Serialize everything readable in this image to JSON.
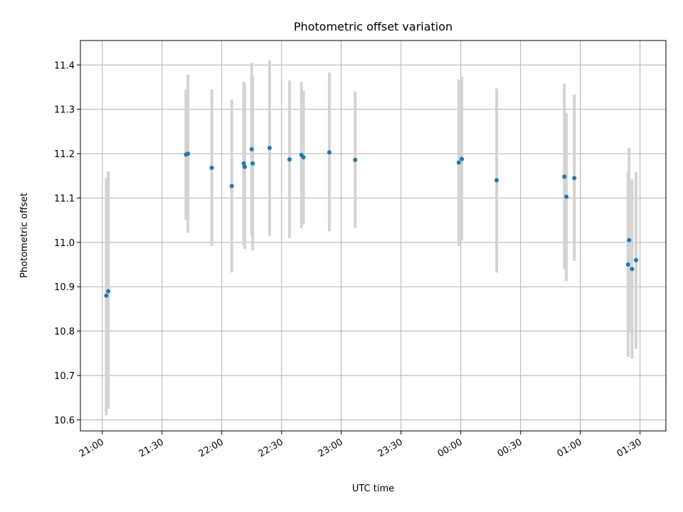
{
  "chart_data": {
    "type": "scatter",
    "title": "Photometric offset variation",
    "xlabel": "UTC time",
    "ylabel": "Photometric offset",
    "x_ticks": [
      "21:00",
      "21:30",
      "22:00",
      "22:30",
      "23:00",
      "23:30",
      "00:00",
      "00:30",
      "01:00",
      "01:30"
    ],
    "y_ticks": [
      "10.6",
      "10.7",
      "10.8",
      "10.9",
      "11.0",
      "11.1",
      "11.2",
      "11.3",
      "11.4"
    ],
    "ylim": [
      10.575,
      11.455
    ],
    "xlim": [
      "20:49",
      "01:43"
    ],
    "grid": true,
    "colors": {
      "point": "#1f77b4",
      "errorbar": "#d3d3d3",
      "grid": "#b0b0b0"
    },
    "points": [
      {
        "x": "21:02",
        "y": 10.88,
        "ylow": 10.61,
        "yhigh": 11.145
      },
      {
        "x": "21:03",
        "y": 10.89,
        "ylow": 10.625,
        "yhigh": 11.16
      },
      {
        "x": "21:42",
        "y": 11.198,
        "ylow": 11.05,
        "yhigh": 11.345
      },
      {
        "x": "21:43",
        "y": 11.2,
        "ylow": 11.022,
        "yhigh": 11.378
      },
      {
        "x": "21:55",
        "y": 11.168,
        "ylow": 10.992,
        "yhigh": 11.345
      },
      {
        "x": "22:05",
        "y": 11.127,
        "ylow": 10.932,
        "yhigh": 11.322
      },
      {
        "x": "22:11",
        "y": 11.178,
        "ylow": 10.992,
        "yhigh": 11.362
      },
      {
        "x": "22:11.5",
        "y": 11.17,
        "ylow": 10.985,
        "yhigh": 11.357
      },
      {
        "x": "22:15",
        "y": 11.21,
        "ylow": 11.015,
        "yhigh": 11.405
      },
      {
        "x": "22:15.5",
        "y": 11.178,
        "ylow": 10.982,
        "yhigh": 11.375
      },
      {
        "x": "22:24",
        "y": 11.213,
        "ylow": 11.015,
        "yhigh": 11.41
      },
      {
        "x": "22:34",
        "y": 11.187,
        "ylow": 11.01,
        "yhigh": 11.365
      },
      {
        "x": "22:40",
        "y": 11.197,
        "ylow": 11.032,
        "yhigh": 11.362
      },
      {
        "x": "22:41",
        "y": 11.192,
        "ylow": 11.04,
        "yhigh": 11.342
      },
      {
        "x": "22:54",
        "y": 11.203,
        "ylow": 11.025,
        "yhigh": 11.383
      },
      {
        "x": "23:07",
        "y": 11.186,
        "ylow": 11.032,
        "yhigh": 11.34
      },
      {
        "x": "23:59",
        "y": 11.18,
        "ylow": 10.992,
        "yhigh": 11.367
      },
      {
        "x": "00:00.5",
        "y": 11.188,
        "ylow": 11.004,
        "yhigh": 11.373
      },
      {
        "x": "00:18",
        "y": 11.14,
        "ylow": 10.932,
        "yhigh": 11.347
      },
      {
        "x": "00:52",
        "y": 11.148,
        "ylow": 10.94,
        "yhigh": 11.358
      },
      {
        "x": "00:53",
        "y": 11.103,
        "ylow": 10.913,
        "yhigh": 11.292
      },
      {
        "x": "00:57",
        "y": 11.145,
        "ylow": 10.958,
        "yhigh": 11.333
      },
      {
        "x": "01:24",
        "y": 10.95,
        "ylow": 10.742,
        "yhigh": 11.158
      },
      {
        "x": "01:24.5",
        "y": 11.005,
        "ylow": 10.796,
        "yhigh": 11.213
      },
      {
        "x": "01:26",
        "y": 10.94,
        "ylow": 10.738,
        "yhigh": 11.142
      },
      {
        "x": "01:28",
        "y": 10.96,
        "ylow": 10.76,
        "yhigh": 11.158
      }
    ]
  }
}
